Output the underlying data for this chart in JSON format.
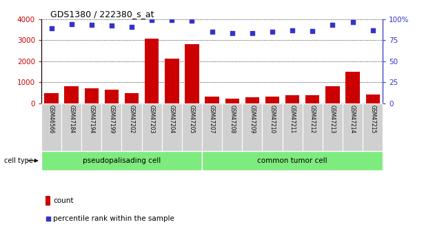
{
  "title": "GDS1380 / 222380_s_at",
  "samples": [
    "GSM46566",
    "GSM47184",
    "GSM47194",
    "GSM47199",
    "GSM47202",
    "GSM47203",
    "GSM47204",
    "GSM47205",
    "GSM47207",
    "GSM47208",
    "GSM47209",
    "GSM47210",
    "GSM47211",
    "GSM47212",
    "GSM47213",
    "GSM47214",
    "GSM47215"
  ],
  "counts": [
    480,
    820,
    720,
    640,
    500,
    3060,
    2130,
    2800,
    340,
    240,
    300,
    340,
    390,
    380,
    830,
    1490,
    420
  ],
  "percentile": [
    89,
    94,
    93,
    92,
    91,
    99,
    99,
    98,
    85,
    83,
    83,
    85,
    87,
    86,
    93,
    96,
    87
  ],
  "group1_label": "pseudopalisading cell",
  "group2_label": "common tumor cell",
  "group1_count": 8,
  "group2_count": 9,
  "count_color": "#cc0000",
  "percentile_color": "#3333cc",
  "bar_bg": "#d0d0d0",
  "group_bg": "#7eeb7e",
  "ylim_left": [
    0,
    4000
  ],
  "ylim_right": [
    0,
    100
  ],
  "yticks_left": [
    0,
    1000,
    2000,
    3000,
    4000
  ],
  "yticks_right": [
    0,
    25,
    50,
    75,
    100
  ],
  "yticklabels_right": [
    "0",
    "25",
    "50",
    "75",
    "100%"
  ]
}
